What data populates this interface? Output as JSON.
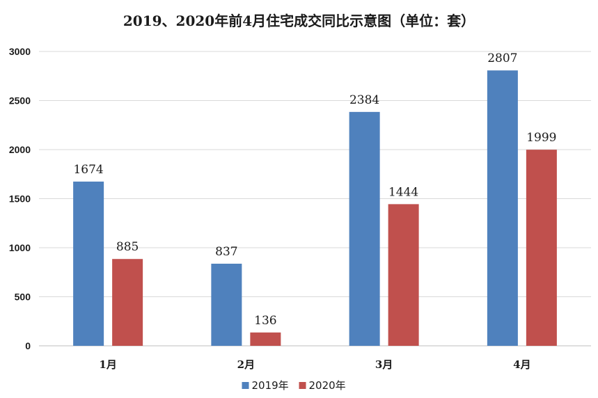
{
  "chart_data": {
    "type": "bar",
    "title": "2019、2020年前4月住宅成交同比示意图（单位：套）",
    "categories": [
      "1月",
      "2月",
      "3月",
      "4月"
    ],
    "series": [
      {
        "name": "2019年",
        "values": [
          1674,
          837,
          2384,
          2807
        ],
        "color": "#4f81bd"
      },
      {
        "name": "2020年",
        "values": [
          885,
          136,
          1444,
          1999
        ],
        "color": "#c0504d"
      }
    ],
    "ylim": [
      0,
      3000
    ],
    "yticks": [
      0,
      500,
      1000,
      1500,
      2000,
      2500,
      3000
    ],
    "grid": true,
    "legend_position": "bottom"
  }
}
